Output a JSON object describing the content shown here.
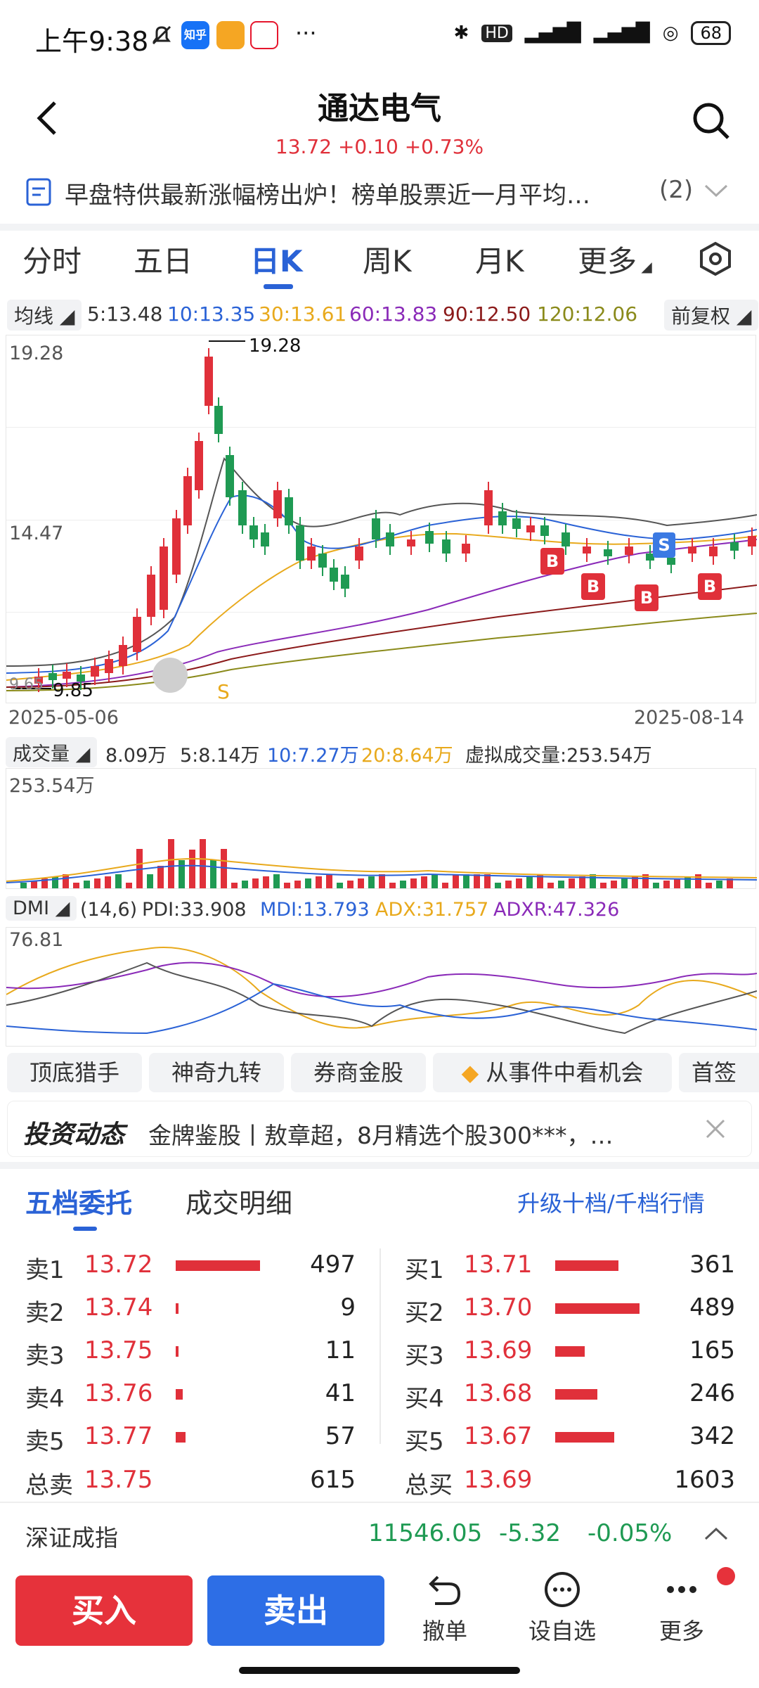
{
  "status_bar": {
    "time": "上午9:38",
    "icon1": "知乎",
    "battery": "68"
  },
  "header": {
    "title": "通达电气",
    "price": "13.72",
    "change": "+0.10",
    "pct": "+0.73%"
  },
  "news": {
    "text": "早盘特供最新涨幅榜出炉！榜单股票近一月平均…",
    "count": "(2)"
  },
  "tabs": [
    "分时",
    "五日",
    "日K",
    "周K",
    "月K",
    "更多"
  ],
  "ma": {
    "label": "均线",
    "ma5": "5:13.48",
    "ma10": "10:13.35",
    "ma30": "30:13.61",
    "ma60": "60:13.83",
    "ma90": "90:12.50",
    "ma120": "120:12.06",
    "adjust": "前复权"
  },
  "kline": {
    "y_top": "19.28",
    "y_mid": "14.47",
    "y_low": "9.65",
    "max_label": "19.28",
    "min_label": "9.85",
    "date_start": "2025-05-06",
    "date_end": "2025-08-14",
    "signal_s_bottom": "S",
    "signal_s_top": "S",
    "signal_b": "B"
  },
  "volume": {
    "label": "成交量",
    "v": "8.09万",
    "v5": "5:8.14万",
    "v10": "10:7.27万",
    "v20": "20:8.64万",
    "virtual": "虚拟成交量:253.54万",
    "y_top": "253.54万"
  },
  "dmi": {
    "label": "DMI",
    "params": "(14,6)",
    "pdi": "PDI:33.908",
    "mdi": "MDI:13.793",
    "adx": "ADX:31.757",
    "adxr": "ADXR:47.326",
    "y_top": "76.81"
  },
  "features": [
    "顶底猎手",
    "神奇九转",
    "券商金股",
    "从事件中看机会",
    "首签"
  ],
  "invest": {
    "logo": "投资动态",
    "text": "金牌鉴股丨敖章超，8月精选个股300***，…"
  },
  "orderbook": {
    "tab1": "五档委托",
    "tab2": "成交明细",
    "upgrade": "升级十档/千档行情",
    "sell": [
      {
        "label": "卖1",
        "price": "13.72",
        "vol": "497",
        "ratio": 0.6
      },
      {
        "label": "卖2",
        "price": "13.74",
        "vol": "9",
        "ratio": 0.02
      },
      {
        "label": "卖3",
        "price": "13.75",
        "vol": "11",
        "ratio": 0.02
      },
      {
        "label": "卖4",
        "price": "13.76",
        "vol": "41",
        "ratio": 0.05
      },
      {
        "label": "卖5",
        "price": "13.77",
        "vol": "57",
        "ratio": 0.07
      }
    ],
    "buy": [
      {
        "label": "买1",
        "price": "13.71",
        "vol": "361",
        "ratio": 0.45
      },
      {
        "label": "买2",
        "price": "13.70",
        "vol": "489",
        "ratio": 0.6
      },
      {
        "label": "买3",
        "price": "13.69",
        "vol": "165",
        "ratio": 0.21
      },
      {
        "label": "买4",
        "price": "13.68",
        "vol": "246",
        "ratio": 0.3
      },
      {
        "label": "买5",
        "price": "13.67",
        "vol": "342",
        "ratio": 0.42
      }
    ],
    "total_sell": {
      "label": "总卖",
      "price": "13.75",
      "vol": "615"
    },
    "total_buy": {
      "label": "总买",
      "price": "13.69",
      "vol": "1603"
    }
  },
  "index": {
    "name": "深证成指",
    "value": "11546.05",
    "change": "-5.32",
    "pct": "-0.05%"
  },
  "bottom": {
    "buy": "买入",
    "sell": "卖出",
    "cancel": "撤单",
    "watch": "设自选",
    "more": "更多"
  },
  "colors": {
    "up": "#e0303a",
    "down": "#1f9a53",
    "accent": "#2a62d6"
  }
}
